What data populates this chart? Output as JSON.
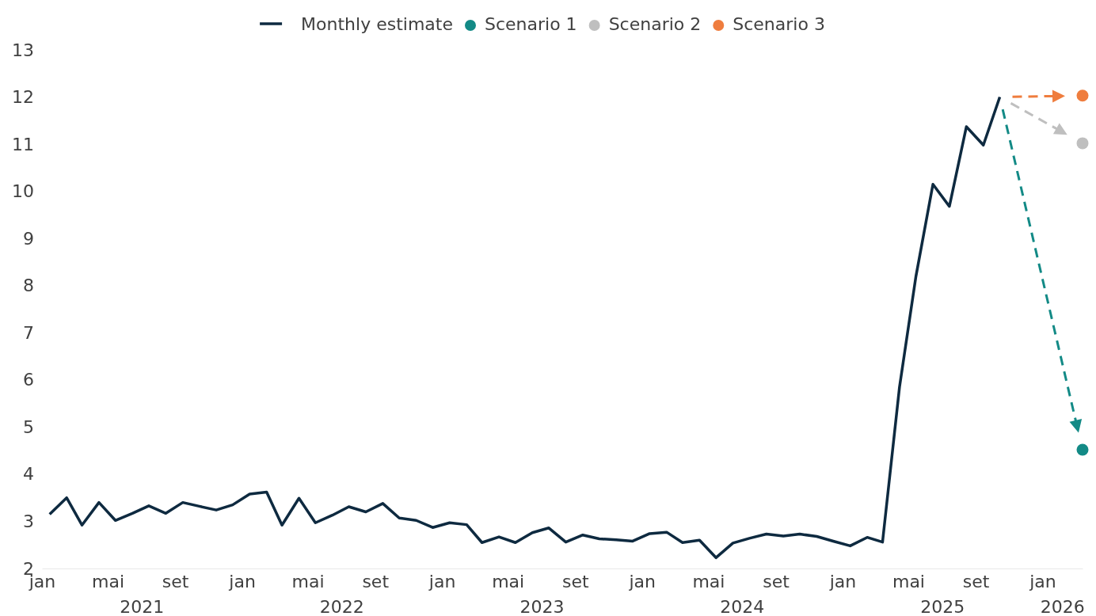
{
  "chart_data": {
    "type": "line",
    "legend": "top",
    "grid": false,
    "xlim": [
      "2021-01-01",
      "2026-03-15"
    ],
    "ylim": [
      2,
      13
    ],
    "yticks": [
      2,
      3,
      4,
      5,
      6,
      7,
      8,
      9,
      10,
      11,
      12,
      13
    ],
    "xticks": [
      {
        "value": "2021-01-01",
        "label": "jan"
      },
      {
        "value": "2021-05-01",
        "label": "mai"
      },
      {
        "value": "2021-09-01",
        "label": "set"
      },
      {
        "value": "2022-01-01",
        "label": "jan"
      },
      {
        "value": "2022-05-01",
        "label": "mai"
      },
      {
        "value": "2022-09-01",
        "label": "set"
      },
      {
        "value": "2023-01-01",
        "label": "jan"
      },
      {
        "value": "2023-05-01",
        "label": "mai"
      },
      {
        "value": "2023-09-01",
        "label": "set"
      },
      {
        "value": "2024-01-01",
        "label": "jan"
      },
      {
        "value": "2024-05-01",
        "label": "mai"
      },
      {
        "value": "2024-09-01",
        "label": "set"
      },
      {
        "value": "2025-01-01",
        "label": "jan"
      },
      {
        "value": "2025-05-01",
        "label": "mai"
      },
      {
        "value": "2025-09-01",
        "label": "set"
      },
      {
        "value": "2026-01-01",
        "label": "jan"
      }
    ],
    "annotations": [
      "2021",
      "2022",
      "2023",
      "2024",
      "2025",
      "2026"
    ],
    "series": [
      {
        "name": "Monthly estimate",
        "marker": "none",
        "line_style": "solid",
        "color": "#0e2a40",
        "x": [
          "2021-01-15",
          "2021-02-15",
          "2021-03-15",
          "2021-04-15",
          "2021-05-15",
          "2021-06-15",
          "2021-07-15",
          "2021-08-15",
          "2021-09-15",
          "2021-10-15",
          "2021-11-15",
          "2021-12-15",
          "2022-01-15",
          "2022-02-15",
          "2022-03-15",
          "2022-04-15",
          "2022-05-15",
          "2022-06-15",
          "2022-07-15",
          "2022-08-15",
          "2022-09-15",
          "2022-10-15",
          "2022-11-15",
          "2022-12-15",
          "2023-01-15",
          "2023-02-15",
          "2023-03-15",
          "2023-04-15",
          "2023-05-15",
          "2023-06-15",
          "2023-07-15",
          "2023-08-15",
          "2023-09-15",
          "2023-10-15",
          "2023-11-15",
          "2023-12-15",
          "2024-01-15",
          "2024-02-15",
          "2024-03-15",
          "2024-04-15",
          "2024-05-15",
          "2024-06-15",
          "2024-07-15",
          "2024-08-15",
          "2024-09-15",
          "2024-10-15",
          "2024-11-15",
          "2024-12-15",
          "2025-01-15",
          "2025-02-15",
          "2025-03-15",
          "2025-04-15",
          "2025-05-15",
          "2025-06-15",
          "2025-07-15",
          "2025-08-15",
          "2025-09-15",
          "2025-10-15"
        ],
        "values": [
          3.15,
          3.5,
          2.92,
          3.4,
          3.02,
          3.17,
          3.33,
          3.17,
          3.4,
          3.32,
          3.24,
          3.35,
          3.58,
          3.62,
          2.92,
          3.49,
          2.97,
          3.13,
          3.31,
          3.2,
          3.38,
          3.07,
          3.02,
          2.87,
          2.97,
          2.93,
          2.55,
          2.67,
          2.55,
          2.76,
          2.86,
          2.56,
          2.71,
          2.63,
          2.61,
          2.58,
          2.74,
          2.77,
          2.55,
          2.6,
          2.23,
          2.54,
          2.64,
          2.73,
          2.69,
          2.73,
          2.68,
          2.58,
          2.48,
          2.66,
          2.56,
          5.85,
          8.2,
          10.15,
          9.68,
          11.37,
          10.98,
          12.0
        ]
      },
      {
        "name": "Scenario 1",
        "type": "scatter",
        "marker": "circle",
        "color": "#138a86",
        "x": [
          "2026-03-15"
        ],
        "values": [
          4.52
        ]
      },
      {
        "name": "Scenario 2",
        "type": "scatter",
        "marker": "circle",
        "color": "#bfbfbf",
        "x": [
          "2026-03-15"
        ],
        "values": [
          11.02
        ]
      },
      {
        "name": "Scenario 3",
        "type": "scatter",
        "marker": "circle",
        "color": "#ef7d3e",
        "x": [
          "2026-03-15"
        ],
        "values": [
          12.03
        ]
      }
    ]
  }
}
